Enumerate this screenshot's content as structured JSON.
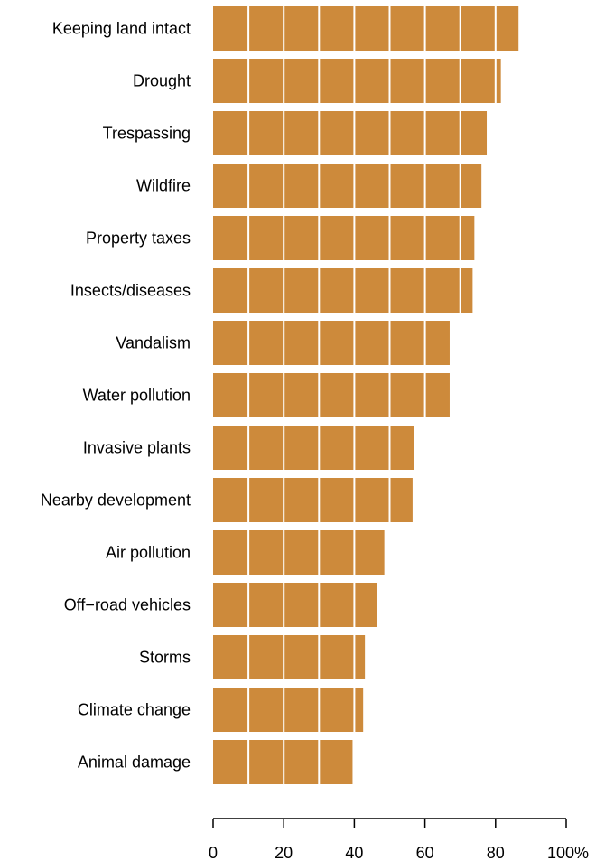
{
  "chart_data": {
    "type": "bar",
    "orientation": "horizontal",
    "categories": [
      "Keeping land intact",
      "Drought",
      "Trespassing",
      "Wildfire",
      "Property taxes",
      "Insects/diseases",
      "Vandalism",
      "Water pollution",
      "Invasive plants",
      "Nearby development",
      "Air pollution",
      "Off−road vehicles",
      "Storms",
      "Climate change",
      "Animal damage"
    ],
    "values": [
      86.5,
      81.5,
      77.5,
      76,
      74,
      73.5,
      67,
      67,
      57,
      56.5,
      48.5,
      46.5,
      43,
      42.5,
      39.5
    ],
    "xlim": [
      0,
      100
    ],
    "x_ticks": [
      0,
      20,
      40,
      60,
      80,
      100
    ],
    "x_tick_labels": [
      "0",
      "20",
      "40",
      "60",
      "80",
      "100%"
    ],
    "grid_step": 10,
    "grid": "white lines inside bars",
    "title": "",
    "xlabel": "",
    "ylabel": "",
    "bar_color": "#cd8a3b",
    "grid_color": "#ffffff",
    "axis_color": "#000000"
  }
}
